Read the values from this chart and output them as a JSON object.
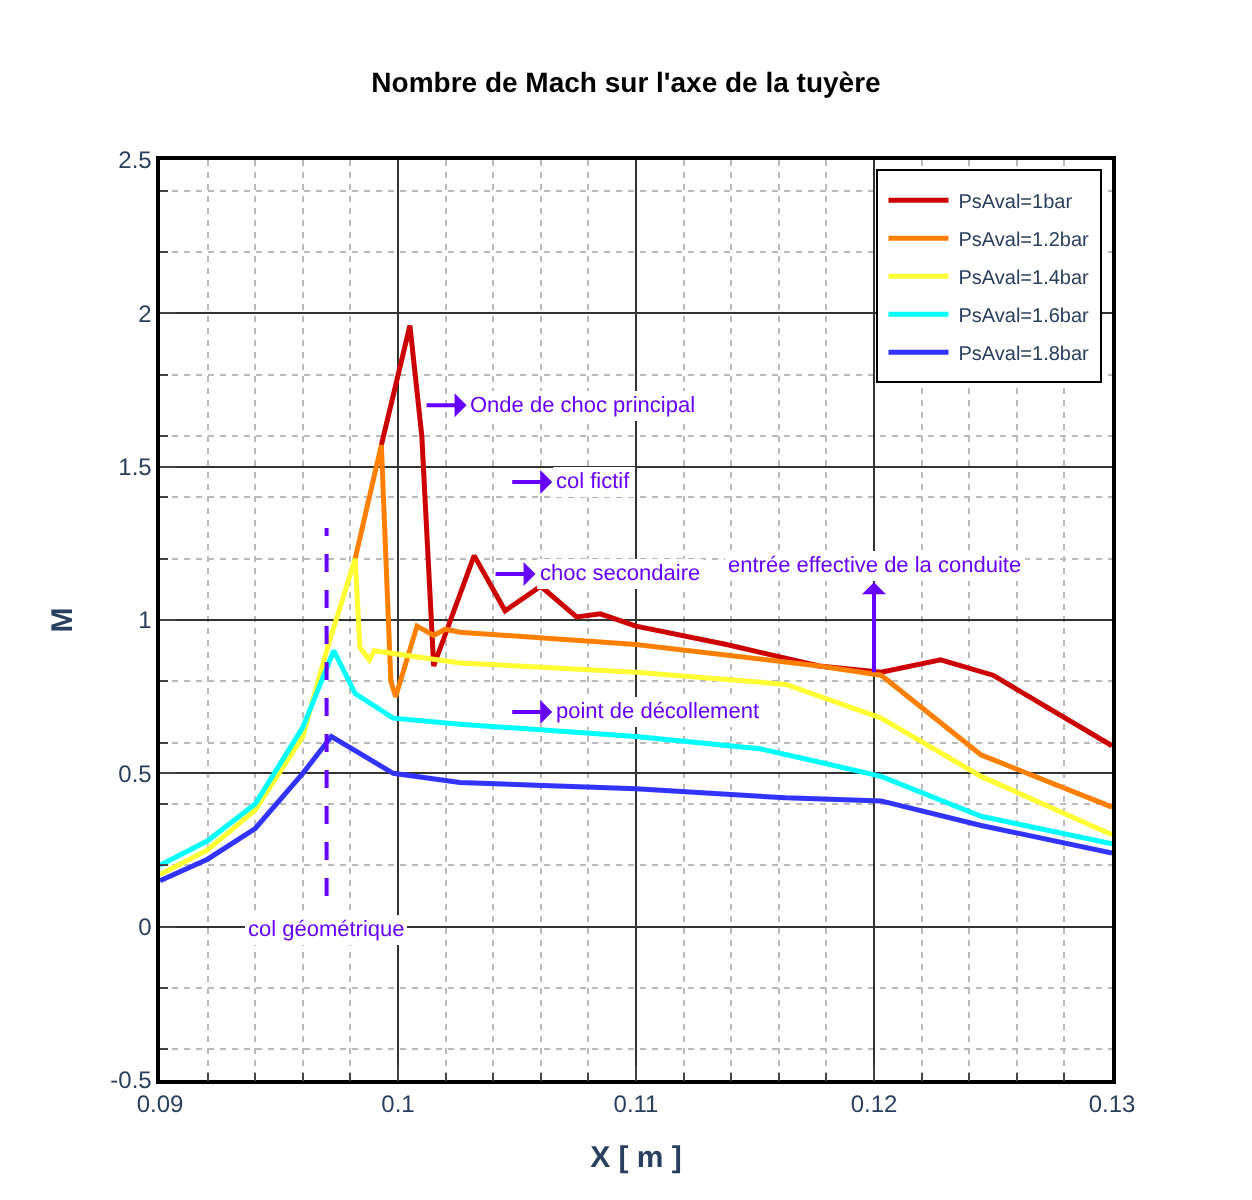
{
  "chart_data": {
    "type": "line",
    "title": "Nombre de Mach sur l'axe de la tuyère",
    "xlabel": "X [ m ]",
    "ylabel": "M",
    "xlim": [
      0.09,
      0.13
    ],
    "xticks": [
      0.09,
      0.1,
      0.11,
      0.12,
      0.13
    ],
    "ylim": [
      -0.5,
      2.5
    ],
    "yticks": [
      -0.5,
      0,
      0.5,
      1,
      1.5,
      2,
      2.5
    ],
    "grid": true,
    "legend": "top right",
    "line_style": "solid",
    "marker": "none",
    "series": [
      {
        "name": "PsAval=1bar",
        "color": "#cc0000",
        "x": [
          0.0993,
          0.1005,
          0.101,
          0.1015,
          0.1032,
          0.1045,
          0.106,
          0.1075,
          0.1085,
          0.11,
          0.1138,
          0.1177,
          0.1203,
          0.1228,
          0.125,
          0.13
        ],
        "values": [
          1.57,
          1.96,
          1.6,
          0.85,
          1.21,
          1.03,
          1.11,
          1.01,
          1.02,
          0.98,
          0.92,
          0.85,
          0.83,
          0.87,
          0.82,
          0.59
        ]
      },
      {
        "name": "PsAval=1.2bar",
        "color": "#ff8000",
        "x": [
          0.0982,
          0.0993,
          0.0997,
          0.0999,
          0.1008,
          0.1015,
          0.102,
          0.1026,
          0.11,
          0.1177,
          0.1203,
          0.1245,
          0.13
        ],
        "values": [
          1.2,
          1.57,
          0.8,
          0.75,
          0.98,
          0.95,
          0.97,
          0.96,
          0.92,
          0.85,
          0.82,
          0.56,
          0.39
        ]
      },
      {
        "name": "PsAval=1.4bar",
        "color": "#ffff33",
        "x": [
          0.09,
          0.092,
          0.094,
          0.096,
          0.097,
          0.0982,
          0.0984,
          0.0988,
          0.099,
          0.1026,
          0.11,
          0.1163,
          0.1203,
          0.1245,
          0.13
        ],
        "values": [
          0.17,
          0.25,
          0.38,
          0.62,
          0.9,
          1.2,
          0.91,
          0.87,
          0.9,
          0.86,
          0.83,
          0.79,
          0.68,
          0.49,
          0.3
        ]
      },
      {
        "name": "PsAval=1.6bar",
        "color": "#00ffff",
        "x": [
          0.09,
          0.092,
          0.094,
          0.096,
          0.0973,
          0.0982,
          0.0998,
          0.1026,
          0.11,
          0.1152,
          0.1175,
          0.1203,
          0.1245,
          0.13
        ],
        "values": [
          0.2,
          0.28,
          0.4,
          0.65,
          0.9,
          0.76,
          0.68,
          0.66,
          0.62,
          0.58,
          0.54,
          0.49,
          0.36,
          0.27
        ]
      },
      {
        "name": "PsAval=1.8bar",
        "color": "#3333ff",
        "x": [
          0.09,
          0.092,
          0.094,
          0.096,
          0.0972,
          0.0985,
          0.0998,
          0.1026,
          0.11,
          0.1163,
          0.1203,
          0.1245,
          0.13
        ],
        "values": [
          0.15,
          0.22,
          0.32,
          0.5,
          0.62,
          0.56,
          0.5,
          0.47,
          0.45,
          0.42,
          0.41,
          0.33,
          0.24
        ]
      }
    ],
    "ref_lines": [
      {
        "axis": "x",
        "value": 0.097,
        "label": "col géométrique",
        "color": "#6600ff",
        "line_style": "dashed"
      }
    ],
    "annotations": [
      {
        "text": "Onde de choc principal",
        "x": 0.1012,
        "y": 1.7
      },
      "col fictif",
      {
        "text": "choc secondaire",
        "x": 0.1041,
        "y": 1.15
      },
      "point de décollement",
      {
        "text": "entrée effective de la conduite",
        "x": 0.12,
        "y": 0.83
      }
    ]
  }
}
